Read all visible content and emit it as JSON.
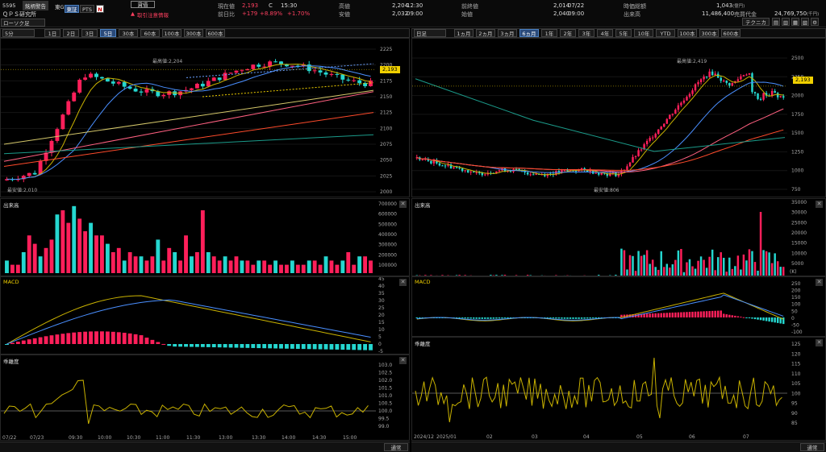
{
  "header": {
    "code": "5595",
    "name": "ＱＰＳ研究所",
    "tab_brand": "銘柄警告",
    "market_a": "東G",
    "market_b": "東証",
    "market_c": "PTS",
    "n_label": "N",
    "credit": "貸借",
    "alert": "取引注意情報",
    "fields": [
      {
        "label": "現在値",
        "value": "2,193",
        "extra": "C",
        "time": "15:30"
      },
      {
        "label": "前日比",
        "value": "+179",
        "pct": "+8.89%",
        "pct2": "+1.70%"
      },
      {
        "label": "高値",
        "value": "2,204",
        "time": "12:30"
      },
      {
        "label": "安値",
        "value": "2,032",
        "time": "09:00"
      },
      {
        "label": "前終値",
        "value": "2,014",
        "time": "07/22"
      },
      {
        "label": "始値",
        "value": "2,040",
        "time": "09:00"
      },
      {
        "label": "時価総額",
        "value": "1,043",
        "unit": "(億円)"
      },
      {
        "label": "出来高",
        "value": "11,486,400"
      },
      {
        "label": "売買代金",
        "value": "24,769,750",
        "unit": "(千円)"
      }
    ]
  },
  "toolbar": {
    "chart_type": "ローソク足",
    "tech_button": "テクニカル",
    "left_interval": "5分",
    "left_ranges": [
      "1日",
      "2日",
      "3日",
      "5日",
      "30本",
      "60本",
      "100本",
      "300本",
      "600本"
    ],
    "left_active": 3,
    "right_interval": "日足",
    "right_ranges": [
      "1ヵ月",
      "2ヵ月",
      "3ヵ月",
      "6ヵ月",
      "1年",
      "2年",
      "3年",
      "4年",
      "5年",
      "10年",
      "YTD",
      "100本",
      "300本",
      "600本"
    ],
    "right_active": 3
  },
  "left_chart": {
    "price_label": "2,193",
    "high_label": "最高値:2,204",
    "low_label": "最安値:2,010",
    "y_ticks": [
      "2225",
      "2200",
      "2175",
      "2150",
      "2125",
      "2100",
      "2075",
      "2050",
      "2025",
      "2000"
    ],
    "volume_label": "出来高",
    "volume_ticks": [
      "700000",
      "600000",
      "500000",
      "400000",
      "300000",
      "200000",
      "100000"
    ],
    "macd_label": "MACD",
    "macd_ticks": [
      "45",
      "40",
      "35",
      "30",
      "25",
      "20",
      "15",
      "10",
      "5",
      "0",
      "-5"
    ],
    "dev_label": "乖離度",
    "dev_ticks": [
      "103.0",
      "102.5",
      "102.0",
      "101.5",
      "101.0",
      "100.5",
      "100.0",
      "99.5",
      "99.0"
    ],
    "x_ticks": [
      "07/22",
      "07/23",
      "09:30",
      "10:00",
      "10:30",
      "11:00",
      "11:30",
      "13:00",
      "13:30",
      "14:00",
      "14:30",
      "15:00"
    ],
    "scroll_label": "通常"
  },
  "right_chart": {
    "price_label": "2,193",
    "high_label": "最高値:2,419",
    "low_label": "最安値:806",
    "y_ticks": [
      "2500",
      "2250",
      "2000",
      "1750",
      "1500",
      "1250",
      "1000",
      "750"
    ],
    "volume_label": "出来高",
    "volume_ticks": [
      "35000",
      "30000",
      "25000",
      "20000",
      "15000",
      "10000",
      "5000"
    ],
    "volume_unit": "(K)",
    "macd_label": "MACD",
    "macd_ticks": [
      "250",
      "200",
      "150",
      "100",
      "50",
      "0",
      "-50",
      "-100"
    ],
    "dev_label": "乖離度",
    "dev_ticks": [
      "125",
      "120",
      "115",
      "110",
      "105",
      "100",
      "95",
      "90",
      "85"
    ],
    "x_ticks": [
      "2024/12",
      "2025/01",
      "02",
      "03",
      "04",
      "05",
      "06",
      "07"
    ],
    "scroll_label": "通常"
  },
  "colors": {
    "up": "#ff1f5a",
    "down": "#25d7d0",
    "price_tag": "#f0d000"
  }
}
